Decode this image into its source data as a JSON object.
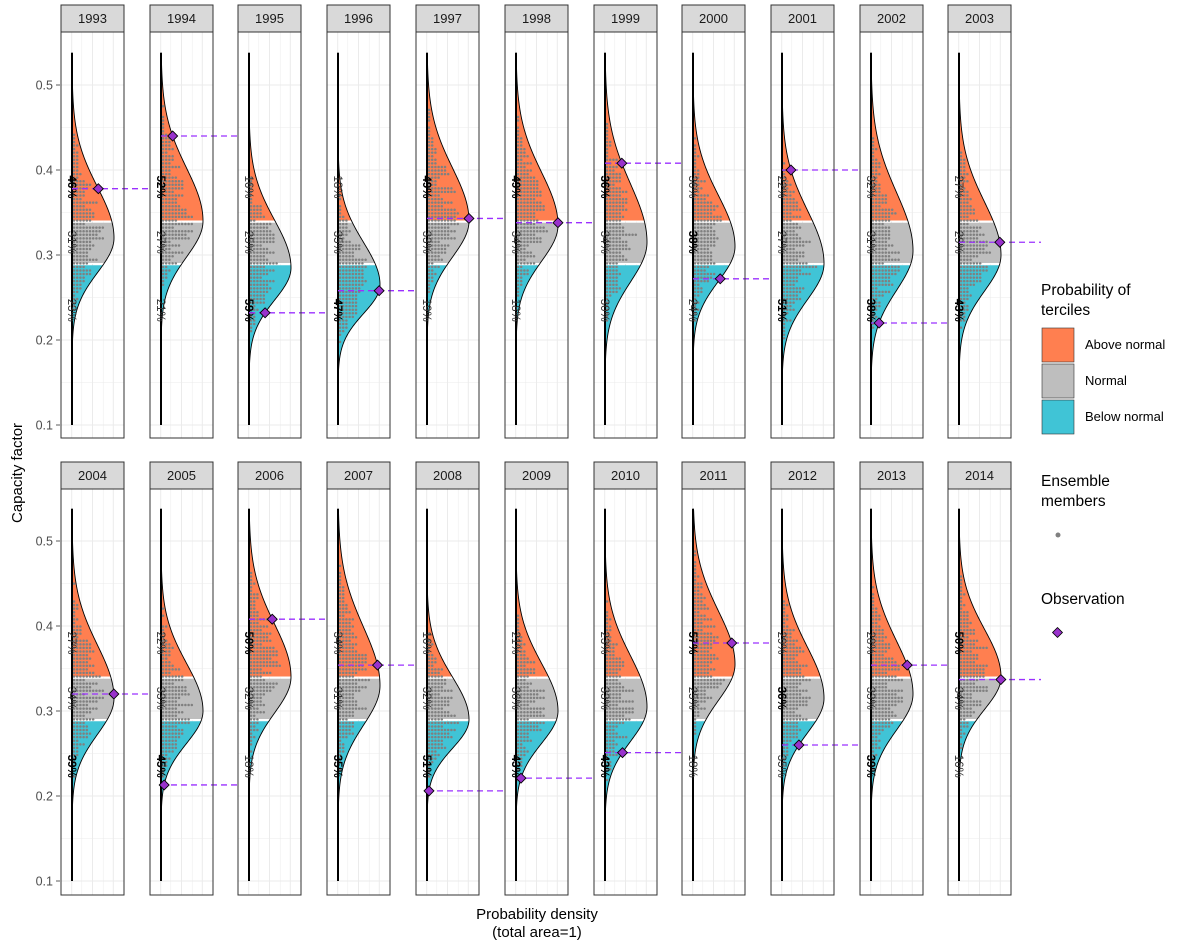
{
  "chart_data": {
    "type": "area",
    "description_free": true,
    "ylabel": "Capacity factor",
    "xlabel": [
      "Probability density",
      "(total area=1)"
    ],
    "ylim": [
      0.1,
      0.54
    ],
    "yticks": [
      0.1,
      0.2,
      0.3,
      0.4,
      0.5
    ],
    "ytick_labels": [
      "0.1",
      "0.2",
      "0.3",
      "0.4",
      "0.5"
    ],
    "tercile_bounds": [
      0.29,
      0.34
    ],
    "colors": {
      "above": "#FF7F50",
      "normal": "#BEBEBE",
      "below": "#40C4D6",
      "observation": "#9932CC",
      "obs_line": "#9B30FF",
      "members": "#808080"
    },
    "legend": {
      "terciles_title": [
        "Probability of",
        "terciles"
      ],
      "terciles": [
        "Above normal",
        "Normal",
        "Below normal"
      ],
      "members_title": [
        "Ensemble",
        "members"
      ],
      "observation_title": "Observation"
    },
    "panels": [
      {
        "year": "1993",
        "above": "46%",
        "normal": "31%",
        "below": "23%",
        "bold": "above",
        "obs": 0.378,
        "mode": 0.32,
        "sd": 0.048
      },
      {
        "year": "1994",
        "above": "52%",
        "normal": "27%",
        "below": "21%",
        "bold": "above",
        "obs": 0.44,
        "mode": 0.34,
        "sd": 0.05
      },
      {
        "year": "1995",
        "above": "16%",
        "normal": "25%",
        "below": "59%",
        "bold": "below",
        "obs": 0.232,
        "mode": 0.285,
        "sd": 0.045
      },
      {
        "year": "1996",
        "above": "18%",
        "normal": "35%",
        "below": "47%",
        "bold": "below",
        "obs": 0.258,
        "mode": 0.265,
        "sd": 0.04
      },
      {
        "year": "1997",
        "above": "49%",
        "normal": "33%",
        "below": "19%",
        "bold": "above",
        "obs": 0.343,
        "mode": 0.34,
        "sd": 0.05
      },
      {
        "year": "1998",
        "above": "49%",
        "normal": "34%",
        "below": "18%",
        "bold": "above",
        "obs": 0.338,
        "mode": 0.335,
        "sd": 0.05
      },
      {
        "year": "1999",
        "above": "36%",
        "normal": "34%",
        "below": "30%",
        "bold": "above",
        "obs": 0.408,
        "mode": 0.315,
        "sd": 0.055
      },
      {
        "year": "2000",
        "above": "36%",
        "normal": "38%",
        "below": "24%",
        "bold": "normal",
        "obs": 0.272,
        "mode": 0.31,
        "sd": 0.048
      },
      {
        "year": "2001",
        "above": "22%",
        "normal": "27%",
        "below": "51%",
        "bold": "below",
        "obs": 0.4,
        "mode": 0.29,
        "sd": 0.05
      },
      {
        "year": "2002",
        "above": "32%",
        "normal": "31%",
        "below": "38%",
        "bold": "below",
        "obs": 0.22,
        "mode": 0.305,
        "sd": 0.055
      },
      {
        "year": "2003",
        "above": "27%",
        "normal": "29%",
        "below": "43%",
        "bold": "below",
        "obs": 0.315,
        "mode": 0.3,
        "sd": 0.05
      },
      {
        "year": "2004",
        "above": "27%",
        "normal": "34%",
        "below": "39%",
        "bold": "below",
        "obs": 0.32,
        "mode": 0.315,
        "sd": 0.05
      },
      {
        "year": "2005",
        "above": "22%",
        "normal": "33%",
        "below": "45%",
        "bold": "below",
        "obs": 0.213,
        "mode": 0.3,
        "sd": 0.045
      },
      {
        "year": "2006",
        "above": "50%",
        "normal": "32%",
        "below": "18%",
        "bold": "above",
        "obs": 0.408,
        "mode": 0.34,
        "sd": 0.05
      },
      {
        "year": "2007",
        "above": "34%",
        "normal": "31%",
        "below": "35%",
        "bold": "below",
        "obs": 0.354,
        "mode": 0.33,
        "sd": 0.055
      },
      {
        "year": "2008",
        "above": "16%",
        "normal": "32%",
        "below": "51%",
        "bold": "below",
        "obs": 0.206,
        "mode": 0.29,
        "sd": 0.04
      },
      {
        "year": "2009",
        "above": "21%",
        "normal": "36%",
        "below": "43%",
        "bold": "below",
        "obs": 0.221,
        "mode": 0.3,
        "sd": 0.045
      },
      {
        "year": "2010",
        "above": "23%",
        "normal": "33%",
        "below": "43%",
        "bold": "below",
        "obs": 0.251,
        "mode": 0.305,
        "sd": 0.048
      },
      {
        "year": "2011",
        "above": "57%",
        "normal": "25%",
        "below": "18%",
        "bold": "above",
        "obs": 0.38,
        "mode": 0.355,
        "sd": 0.05
      },
      {
        "year": "2012",
        "above": "29%",
        "normal": "36%",
        "below": "35%",
        "bold": "normal",
        "obs": 0.26,
        "mode": 0.315,
        "sd": 0.048
      },
      {
        "year": "2013",
        "above": "28%",
        "normal": "33%",
        "below": "39%",
        "bold": "below",
        "obs": 0.354,
        "mode": 0.32,
        "sd": 0.05
      },
      {
        "year": "2014",
        "above": "50%",
        "normal": "34%",
        "below": "16%",
        "bold": "above",
        "obs": 0.337,
        "mode": 0.34,
        "sd": 0.045
      }
    ]
  }
}
